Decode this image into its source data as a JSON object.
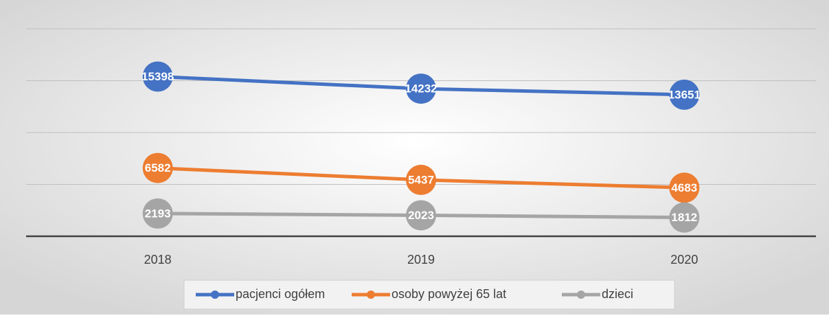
{
  "chart_data": {
    "type": "line",
    "categories": [
      "2018",
      "2019",
      "2020"
    ],
    "series": [
      {
        "name": "pacjenci ogółem",
        "color": "#4472c4",
        "values": [
          15398,
          14232,
          13651
        ]
      },
      {
        "name": "osoby powyżej 65 lat",
        "color": "#ed7d31",
        "values": [
          6582,
          5437,
          4683
        ]
      },
      {
        "name": "dzieci",
        "color": "#a5a5a5",
        "values": [
          2193,
          2023,
          1812
        ]
      }
    ],
    "ylim": [
      0,
      20000
    ],
    "yticks": [
      0,
      5000,
      10000,
      15000,
      20000
    ],
    "grid": true,
    "legend": "bottom"
  }
}
